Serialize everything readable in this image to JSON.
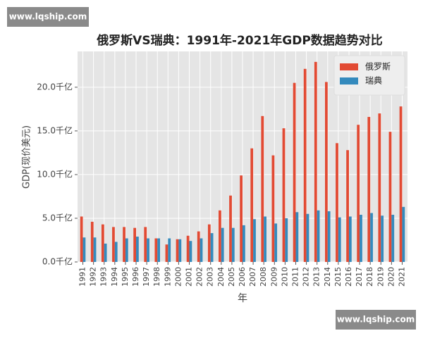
{
  "watermarks": [
    "www.lqship.com",
    "www.lqship.com"
  ],
  "chart_data": {
    "type": "bar",
    "title": "俄罗斯VS瑞典：1991年-2021年GDP数据趋势对比",
    "x_label": "年",
    "y_label": "GDP(现价美元)",
    "categories": [
      "1991",
      "1992",
      "1993",
      "1994",
      "1995",
      "1996",
      "1997",
      "1998",
      "1999",
      "2000",
      "2001",
      "2002",
      "2003",
      "2004",
      "2005",
      "2006",
      "2007",
      "2008",
      "2009",
      "2010",
      "2011",
      "2012",
      "2013",
      "2014",
      "2015",
      "2016",
      "2017",
      "2018",
      "2019",
      "2020",
      "2021"
    ],
    "series": [
      {
        "name": "俄罗斯",
        "color": "#e24a33",
        "values": [
          5.2,
          4.6,
          4.3,
          4.0,
          4.0,
          3.9,
          4.0,
          2.7,
          2.0,
          2.6,
          3.0,
          3.5,
          4.3,
          5.9,
          7.6,
          9.9,
          13.0,
          16.7,
          12.2,
          15.3,
          20.5,
          22.1,
          22.9,
          20.6,
          13.6,
          12.8,
          15.7,
          16.6,
          17.0,
          14.9,
          17.8
        ]
      },
      {
        "name": "瑞典",
        "color": "#348abd",
        "values": [
          2.8,
          2.8,
          2.1,
          2.3,
          2.7,
          2.9,
          2.7,
          2.7,
          2.7,
          2.6,
          2.4,
          2.7,
          3.3,
          3.9,
          3.9,
          4.2,
          4.9,
          5.2,
          4.4,
          5.0,
          5.7,
          5.5,
          5.9,
          5.8,
          5.1,
          5.2,
          5.4,
          5.6,
          5.3,
          5.4,
          6.3
        ]
      }
    ],
    "ylim": [
      0,
      24.1
    ],
    "yticks": [
      {
        "value": 0,
        "label": "0.0千亿"
      },
      {
        "value": 5,
        "label": "5.0千亿"
      },
      {
        "value": 10,
        "label": "10.0千亿"
      },
      {
        "value": 15,
        "label": "15.0千亿"
      },
      {
        "value": 20,
        "label": "20.0千亿"
      }
    ],
    "grid": true,
    "legend": "upper right"
  }
}
